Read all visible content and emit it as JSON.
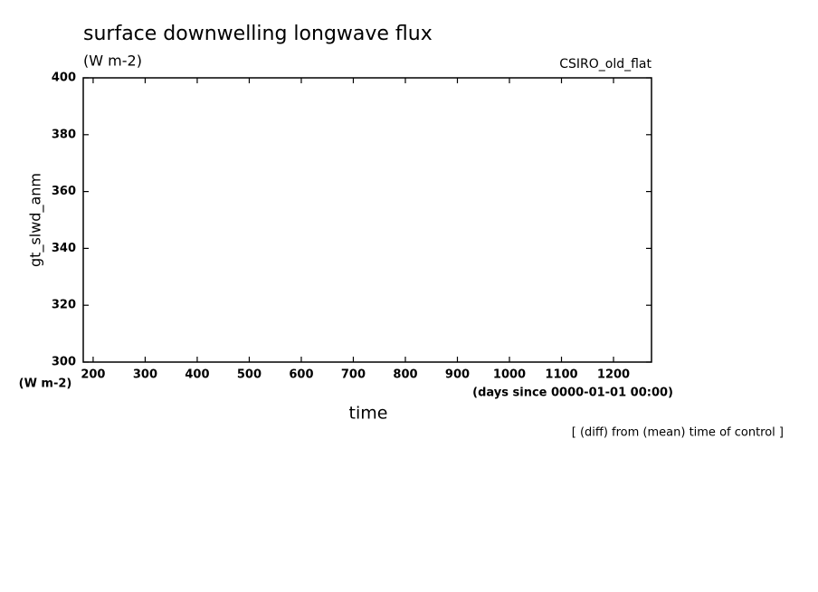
{
  "chart_data": {
    "type": "line",
    "title": "surface downwelling longwave flux",
    "subtitle": "(W m-2)",
    "annotation": "CSIRO_old_flat",
    "ylabel": "gt_slwd_anm",
    "yunits": "(W m-2)",
    "xlabel": "time",
    "xunits": "(days since 0000-01-01 00:00)",
    "note": "[ (diff) from (mean) time of control ]",
    "xlim": [
      181,
      1273
    ],
    "xticks": [
      200,
      300,
      400,
      500,
      600,
      700,
      800,
      900,
      1000,
      1100,
      1200
    ],
    "ylim": [
      300,
      400
    ],
    "yticks": [
      300,
      320,
      340,
      360,
      380,
      400
    ],
    "color": "#000000"
  }
}
